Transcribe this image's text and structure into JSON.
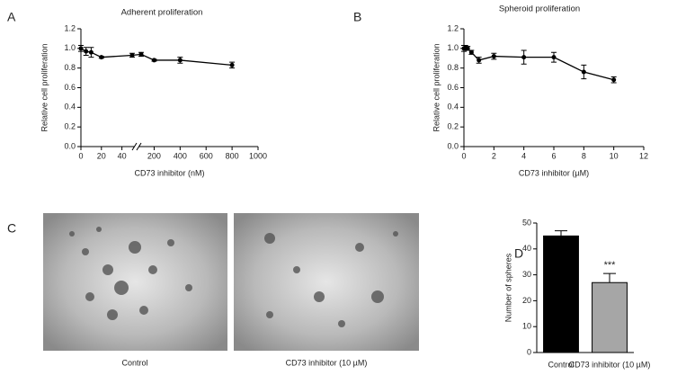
{
  "panel_labels": [
    "A",
    "B",
    "C",
    "D"
  ],
  "image_captions": [
    "Control",
    "CD73 inhibitor (10 µM)"
  ],
  "chart_data": [
    {
      "type": "line",
      "title": "Adherent proliferation",
      "x_label": "CD73 inhibitor (nM)",
      "y_label": "Relative cell proliferation",
      "x": [
        0,
        5,
        10,
        20,
        50,
        100,
        200,
        400,
        800
      ],
      "series": [
        {
          "color": "#000000",
          "values": [
            1.0,
            0.97,
            0.96,
            0.91,
            0.93,
            0.94,
            0.88,
            0.88,
            0.83
          ],
          "errors": [
            0.03,
            0.04,
            0.05,
            0.01,
            0.02,
            0.02,
            0.01,
            0.03,
            0.03
          ]
        }
      ],
      "xlim": [
        0,
        1000
      ],
      "xbreak": [
        50,
        100
      ],
      "xticks": [
        0,
        20,
        40,
        200,
        400,
        600,
        800,
        1000
      ],
      "ylim": [
        0,
        1.2
      ],
      "yticks": [
        {
          "value": 0,
          "label": "0.0"
        },
        0.2,
        0.4,
        0.6,
        0.8,
        {
          "value": 1,
          "label": "1.0"
        },
        1.2
      ]
    },
    {
      "type": "line",
      "title": "Spheroid proliferation",
      "x_label": "CD73 inhibitor (µM)",
      "y_label": "Relative cell proliferation",
      "x": [
        0,
        0.1,
        0.25,
        0.5,
        1,
        2,
        4,
        6,
        8,
        10
      ],
      "series": [
        {
          "color": "#000000",
          "values": [
            1.0,
            1.01,
            1.0,
            0.96,
            0.88,
            0.92,
            0.91,
            0.91,
            0.76,
            0.68
          ],
          "errors": [
            0.03,
            0.02,
            0.02,
            0.02,
            0.03,
            0.03,
            0.07,
            0.05,
            0.07,
            0.03
          ]
        }
      ],
      "xlim": [
        0,
        12
      ],
      "xticks": [
        0,
        2,
        4,
        6,
        8,
        10,
        12
      ],
      "ylim": [
        0,
        1.2
      ],
      "yticks": [
        {
          "value": 0,
          "label": "0.0"
        },
        0.2,
        0.4,
        0.6,
        0.8,
        {
          "value": 1,
          "label": "1.0"
        },
        1.2
      ]
    },
    {
      "type": "bar",
      "y_label": "Number of spheres",
      "annotation": "***",
      "categories": [
        "Control",
        "CD73 inhibitor (10 µM)"
      ],
      "values": [
        45,
        27
      ],
      "errors": [
        2,
        3.5
      ],
      "colors": [
        "#000000",
        "#a6a6a6"
      ],
      "ylim": [
        0,
        50
      ],
      "yticks": [
        0,
        10,
        20,
        30,
        40,
        50
      ]
    }
  ]
}
